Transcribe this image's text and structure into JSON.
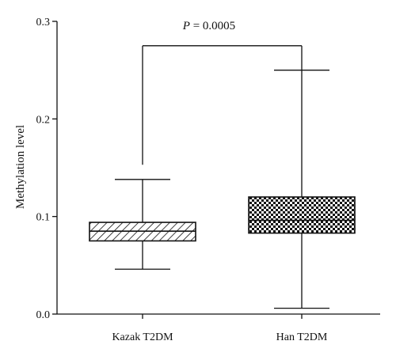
{
  "chart_data": {
    "type": "box",
    "title": "",
    "xlabel": "",
    "ylabel": "Methylation level",
    "ylim": [
      0.0,
      0.3
    ],
    "yticks": [
      0.0,
      0.1,
      0.2,
      0.3
    ],
    "ytick_labels": [
      "0.0",
      "0.1",
      "0.2",
      "0.3"
    ],
    "grid": false,
    "categories": [
      "Kazak T2DM",
      "Han T2DM"
    ],
    "boxes": [
      {
        "category": "Kazak T2DM",
        "min": 0.046,
        "q1": 0.075,
        "median": 0.085,
        "q3": 0.094,
        "max": 0.138,
        "fill_pattern": "diagonal-hatch"
      },
      {
        "category": "Han T2DM",
        "min": 0.006,
        "q1": 0.083,
        "median": 0.096,
        "q3": 0.12,
        "max": 0.25,
        "fill_pattern": "checkerboard"
      }
    ],
    "significance": {
      "p_symbol": "P",
      "p_equals": " = 0.0005",
      "bracket_y": 0.275,
      "left_drop_to": 0.153,
      "right_drop_to": 0.25
    }
  }
}
